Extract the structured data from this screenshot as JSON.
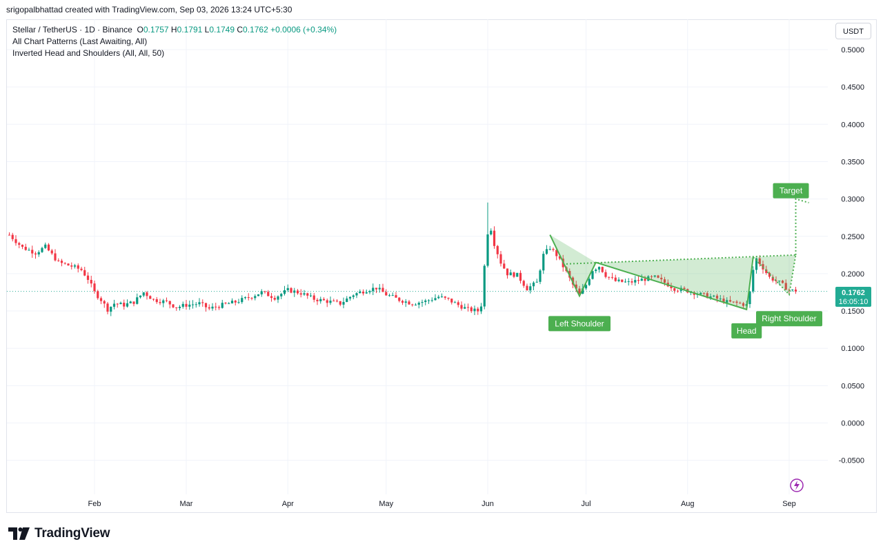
{
  "header": {
    "credit": "srigopalbhattad created with TradingView.com, Sep 03, 2026 13:24 UTC+5:30"
  },
  "legend": {
    "symbol": "Stellar / TetherUS · 1D · Binance",
    "o_label": "O",
    "o_value": "0.1757",
    "h_label": "H",
    "h_value": "0.1791",
    "l_label": "L",
    "l_value": "0.1749",
    "c_label": "C",
    "c_value": "0.1762",
    "change": "+0.0006 (+0.34%)",
    "indicator1": "All Chart Patterns (Last Awaiting, All)",
    "indicator2": "Inverted Head and Shoulders (All, All, 50)"
  },
  "currency_button": "USDT",
  "price_label": {
    "value": "0.1762",
    "countdown": "16:05:10"
  },
  "branding": {
    "name": "TradingView"
  },
  "colors": {
    "up": "#089981",
    "down": "#f23645",
    "pattern": "#4caf50",
    "price_tag": "#22ab94"
  },
  "chart_data": {
    "type": "candlestick",
    "series_name": "Stellar / TetherUS",
    "interval": "1D",
    "y_ticks": [
      "0.5000",
      "0.4500",
      "0.4000",
      "0.3500",
      "0.3000",
      "0.2500",
      "0.2000",
      "0.1500",
      "0.1000",
      "0.0500",
      "0.0000",
      "-0.0500"
    ],
    "ylim": [
      -0.085,
      0.52
    ],
    "x_ticks": [
      {
        "label": "Feb",
        "day": 31
      },
      {
        "label": "Mar",
        "day": 59
      },
      {
        "label": "Apr",
        "day": 90
      },
      {
        "label": "May",
        "day": 120
      },
      {
        "label": "Jun",
        "day": 151
      },
      {
        "label": "Jul",
        "day": 181
      },
      {
        "label": "Aug",
        "day": 212
      },
      {
        "label": "Sep",
        "day": 243
      }
    ],
    "x_range_days": [
      5,
      251
    ],
    "grid": true,
    "close_anchors": [
      [
        5,
        0.252
      ],
      [
        9,
        0.235
      ],
      [
        13,
        0.228
      ],
      [
        16,
        0.236
      ],
      [
        20,
        0.215
      ],
      [
        24,
        0.21
      ],
      [
        27,
        0.205
      ],
      [
        29,
        0.193
      ],
      [
        31,
        0.175
      ],
      [
        33,
        0.165
      ],
      [
        35,
        0.152
      ],
      [
        37,
        0.16
      ],
      [
        40,
        0.158
      ],
      [
        43,
        0.162
      ],
      [
        46,
        0.175
      ],
      [
        49,
        0.165
      ],
      [
        53,
        0.162
      ],
      [
        56,
        0.155
      ],
      [
        59,
        0.158
      ],
      [
        63,
        0.16
      ],
      [
        66,
        0.153
      ],
      [
        70,
        0.158
      ],
      [
        74,
        0.162
      ],
      [
        78,
        0.168
      ],
      [
        82,
        0.175
      ],
      [
        86,
        0.168
      ],
      [
        90,
        0.178
      ],
      [
        94,
        0.174
      ],
      [
        98,
        0.166
      ],
      [
        102,
        0.163
      ],
      [
        106,
        0.16
      ],
      [
        110,
        0.172
      ],
      [
        114,
        0.178
      ],
      [
        117,
        0.181
      ],
      [
        120,
        0.172
      ],
      [
        124,
        0.165
      ],
      [
        128,
        0.16
      ],
      [
        132,
        0.163
      ],
      [
        136,
        0.169
      ],
      [
        139,
        0.165
      ],
      [
        142,
        0.158
      ],
      [
        145,
        0.152
      ],
      [
        148,
        0.15
      ],
      [
        149,
        0.158
      ],
      [
        150,
        0.21
      ],
      [
        151,
        0.255
      ],
      [
        152,
        0.26
      ],
      [
        153,
        0.24
      ],
      [
        155,
        0.215
      ],
      [
        157,
        0.2
      ],
      [
        160,
        0.198
      ],
      [
        163,
        0.18
      ],
      [
        166,
        0.188
      ],
      [
        168,
        0.225
      ],
      [
        170,
        0.235
      ],
      [
        172,
        0.225
      ],
      [
        175,
        0.202
      ],
      [
        177,
        0.185
      ],
      [
        179,
        0.172
      ],
      [
        181,
        0.185
      ],
      [
        183,
        0.205
      ],
      [
        185,
        0.21
      ],
      [
        187,
        0.198
      ],
      [
        190,
        0.19
      ],
      [
        194,
        0.188
      ],
      [
        198,
        0.192
      ],
      [
        202,
        0.195
      ],
      [
        205,
        0.188
      ],
      [
        208,
        0.18
      ],
      [
        212,
        0.177
      ],
      [
        216,
        0.172
      ],
      [
        220,
        0.168
      ],
      [
        224,
        0.162
      ],
      [
        228,
        0.16
      ],
      [
        230,
        0.158
      ],
      [
        231,
        0.175
      ],
      [
        232,
        0.205
      ],
      [
        233,
        0.22
      ],
      [
        235,
        0.208
      ],
      [
        237,
        0.195
      ],
      [
        240,
        0.188
      ],
      [
        243,
        0.178
      ],
      [
        245,
        0.1762
      ]
    ],
    "current_close": 0.1762,
    "pattern": {
      "name": "Inverted Head and Shoulders",
      "labels": {
        "left_shoulder": "Left Shoulder",
        "head": "Head",
        "right_shoulder": "Right Shoulder",
        "target": "Target"
      },
      "points": {
        "start": [
          170,
          0.252
        ],
        "left_shoulder": [
          179,
          0.17
        ],
        "neck1": [
          184,
          0.215
        ],
        "head": [
          230,
          0.152
        ],
        "neck2": [
          232,
          0.222
        ],
        "right_shoulder": [
          243,
          0.172
        ]
      },
      "neckline_ext": [
        [
          175,
          0.213
        ],
        [
          245,
          0.225
        ]
      ],
      "target_line": [
        [
          245,
          0.225
        ],
        [
          245,
          0.3
        ],
        [
          249,
          0.295
        ]
      ]
    }
  }
}
